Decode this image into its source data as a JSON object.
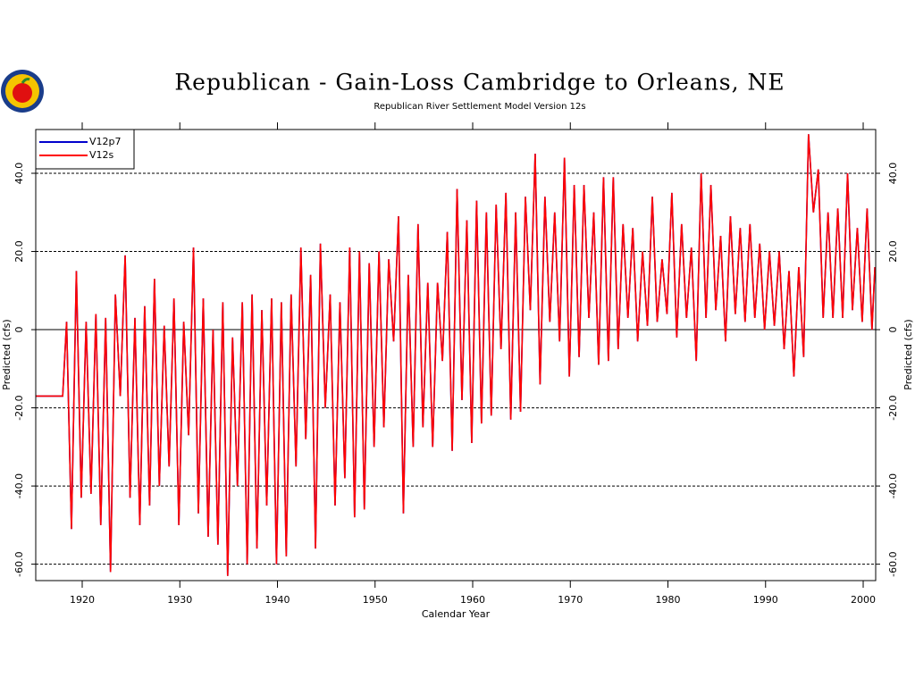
{
  "chart_data": {
    "type": "line",
    "title": "Republican - Gain-Loss Cambridge to Orleans, NE",
    "subtitle": "Republican River Settlement Model Version 12s",
    "x_label": "Calendar Year",
    "y_label": "Predicted (cfs)",
    "xlim": [
      1915.24,
      2001.28
    ],
    "xticks": [
      1920,
      1930,
      1940,
      1950,
      1960,
      1970,
      1980,
      1990,
      2000
    ],
    "ylim": [
      -64.2,
      51.2
    ],
    "yticks": [
      {
        "value": -60,
        "label": "-60.0"
      },
      {
        "value": -40,
        "label": "-40.0"
      },
      {
        "value": -20,
        "label": "-20.0"
      },
      0,
      {
        "value": 20,
        "label": "20.0"
      },
      {
        "value": 40,
        "label": "40.0"
      }
    ],
    "grid": true,
    "legend": "upper left",
    "x": [
      1915.24,
      1918.0,
      1918.4,
      1918.9,
      1919.4,
      1919.9,
      1920.4,
      1920.9,
      1921.4,
      1921.9,
      1922.4,
      1922.9,
      1923.4,
      1923.9,
      1924.4,
      1924.9,
      1925.4,
      1925.9,
      1926.4,
      1926.9,
      1927.4,
      1927.9,
      1928.4,
      1928.9,
      1929.4,
      1929.9,
      1930.4,
      1930.9,
      1931.4,
      1931.9,
      1932.4,
      1932.9,
      1933.4,
      1933.9,
      1934.4,
      1934.9,
      1935.4,
      1935.9,
      1936.4,
      1936.9,
      1937.4,
      1937.9,
      1938.4,
      1938.9,
      1939.4,
      1939.9,
      1940.4,
      1940.9,
      1941.4,
      1941.9,
      1942.4,
      1942.9,
      1943.4,
      1943.9,
      1944.4,
      1944.9,
      1945.4,
      1945.9,
      1946.4,
      1946.9,
      1947.4,
      1947.9,
      1948.4,
      1948.9,
      1949.4,
      1949.9,
      1950.4,
      1950.9,
      1951.4,
      1951.9,
      1952.4,
      1952.9,
      1953.4,
      1953.9,
      1954.4,
      1954.9,
      1955.4,
      1955.9,
      1956.4,
      1956.9,
      1957.4,
      1957.9,
      1958.4,
      1958.9,
      1959.4,
      1959.9,
      1960.4,
      1960.9,
      1961.4,
      1961.9,
      1962.4,
      1962.9,
      1963.4,
      1963.9,
      1964.4,
      1964.9,
      1965.4,
      1965.9,
      1966.4,
      1966.9,
      1967.4,
      1967.9,
      1968.4,
      1968.9,
      1969.4,
      1969.9,
      1970.4,
      1970.9,
      1971.4,
      1971.9,
      1972.4,
      1972.9,
      1973.4,
      1973.9,
      1974.4,
      1974.9,
      1975.4,
      1975.9,
      1976.4,
      1976.9,
      1977.4,
      1977.9,
      1978.4,
      1978.9,
      1979.4,
      1979.9,
      1980.4,
      1980.9,
      1981.4,
      1981.9,
      1982.4,
      1982.9,
      1983.4,
      1983.9,
      1984.4,
      1984.9,
      1985.4,
      1985.9,
      1986.4,
      1986.9,
      1987.4,
      1987.9,
      1988.4,
      1988.9,
      1989.4,
      1989.9,
      1990.4,
      1990.9,
      1991.4,
      1991.9,
      1992.4,
      1992.9,
      1993.4,
      1993.9,
      1994.4,
      1994.9,
      1995.4,
      1995.9,
      1996.4,
      1996.9,
      1997.4,
      1997.9,
      1998.4,
      1998.9,
      1999.4,
      1999.9,
      2000.4,
      2000.9,
      2001.2
    ],
    "series": [
      {
        "name": "V12p7",
        "color": "#0000cc",
        "values": [
          -17,
          -17,
          2,
          -51,
          15,
          -43,
          2,
          -42,
          4,
          -50,
          3,
          -62,
          9,
          -17,
          19,
          -43,
          3,
          -50,
          6,
          -45,
          13,
          -40,
          1,
          -35,
          8,
          -50,
          2,
          -27,
          21,
          -47,
          8,
          -53,
          0,
          -55,
          7,
          -63,
          -2,
          -40,
          7,
          -60,
          9,
          -56,
          5,
          -45,
          8,
          -60,
          7,
          -58,
          9,
          -35,
          21,
          -28,
          14,
          -56,
          22,
          -20,
          9,
          -45,
          7,
          -38,
          21,
          -48,
          20,
          -46,
          17,
          -30,
          20,
          -25,
          18,
          -3,
          29,
          -47,
          14,
          -30,
          27,
          -25,
          12,
          -30,
          12,
          -8,
          25,
          -31,
          36,
          -18,
          28,
          -29,
          33,
          -24,
          30,
          -22,
          32,
          -5,
          35,
          -23,
          30,
          -21,
          34,
          5,
          45,
          -14,
          34,
          2,
          30,
          -3,
          44,
          -12,
          37,
          -7,
          37,
          3,
          30,
          -9,
          39,
          -8,
          39,
          -5,
          27,
          3,
          26,
          -3,
          20,
          1,
          34,
          2,
          18,
          4,
          35,
          -2,
          27,
          3,
          21,
          -8,
          40,
          3,
          37,
          5,
          24,
          -3,
          29,
          4,
          26,
          2,
          27,
          3,
          22,
          0,
          20,
          1,
          20,
          -5,
          15,
          -12,
          16,
          -7,
          50,
          30,
          41,
          3,
          30,
          3,
          31,
          3,
          40,
          5,
          26,
          2,
          31,
          0,
          16
        ]
      },
      {
        "name": "V12s",
        "color": "#ff0000",
        "values": [
          -17,
          -17,
          2,
          -51,
          15,
          -43,
          2,
          -42,
          4,
          -50,
          3,
          -62,
          9,
          -17,
          19,
          -43,
          3,
          -50,
          6,
          -45,
          13,
          -40,
          1,
          -35,
          8,
          -50,
          2,
          -27,
          21,
          -47,
          8,
          -53,
          0,
          -55,
          7,
          -63,
          -2,
          -40,
          7,
          -60,
          9,
          -56,
          5,
          -45,
          8,
          -60,
          7,
          -58,
          9,
          -35,
          21,
          -28,
          14,
          -56,
          22,
          -20,
          9,
          -45,
          7,
          -38,
          21,
          -48,
          20,
          -46,
          17,
          -30,
          20,
          -25,
          18,
          -3,
          29,
          -47,
          14,
          -30,
          27,
          -25,
          12,
          -30,
          12,
          -8,
          25,
          -31,
          36,
          -18,
          28,
          -29,
          33,
          -24,
          30,
          -22,
          32,
          -5,
          35,
          -23,
          30,
          -21,
          34,
          5,
          45,
          -14,
          34,
          2,
          30,
          -3,
          44,
          -12,
          37,
          -7,
          37,
          3,
          30,
          -9,
          39,
          -8,
          39,
          -5,
          27,
          3,
          26,
          -3,
          20,
          1,
          34,
          2,
          18,
          4,
          35,
          -2,
          27,
          3,
          21,
          -8,
          40,
          3,
          37,
          5,
          24,
          -3,
          29,
          4,
          26,
          2,
          27,
          3,
          22,
          0,
          20,
          1,
          20,
          -5,
          15,
          -12,
          16,
          -7,
          50,
          30,
          41,
          3,
          30,
          3,
          31,
          3,
          40,
          5,
          26,
          2,
          31,
          0,
          16
        ]
      }
    ]
  }
}
